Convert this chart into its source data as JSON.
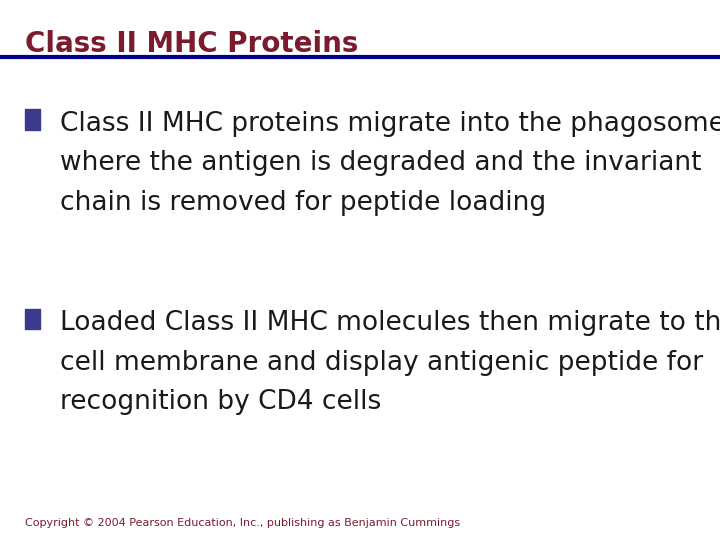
{
  "title": "Class II MHC Proteins",
  "title_color": "#7B1C2E",
  "title_fontsize": 20,
  "line_color": "#00008B",
  "background_color": "#FFFFFF",
  "bullet_color": "#3B3B8B",
  "bullet1_line1": "Class II MHC proteins migrate into the phagosomes",
  "bullet1_line2": "where the antigen is degraded and the invariant",
  "bullet1_line3": "chain is removed for peptide loading",
  "bullet2_line1": "Loaded Class II MHC molecules then migrate to the",
  "bullet2_line2": "cell membrane and display antigenic peptide for",
  "bullet2_line3": "recognition by CD4 cells",
  "text_color": "#1a1a1a",
  "text_fontsize": 19,
  "copyright_text": "Copyright © 2004 Pearson Education, Inc., publishing as Benjamin Cummings",
  "copyright_color": "#7B1C2E",
  "copyright_fontsize": 8
}
